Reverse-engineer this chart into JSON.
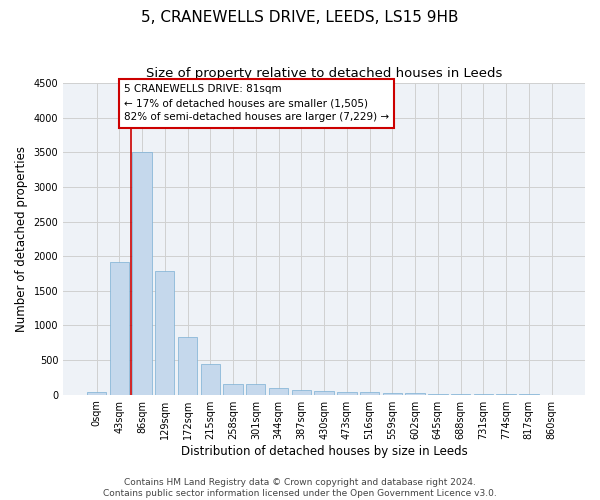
{
  "title": "5, CRANEWELLS DRIVE, LEEDS, LS15 9HB",
  "subtitle": "Size of property relative to detached houses in Leeds",
  "xlabel": "Distribution of detached houses by size in Leeds",
  "ylabel": "Number of detached properties",
  "bin_labels": [
    "0sqm",
    "43sqm",
    "86sqm",
    "129sqm",
    "172sqm",
    "215sqm",
    "258sqm",
    "301sqm",
    "344sqm",
    "387sqm",
    "430sqm",
    "473sqm",
    "516sqm",
    "559sqm",
    "602sqm",
    "645sqm",
    "688sqm",
    "731sqm",
    "774sqm",
    "817sqm",
    "860sqm"
  ],
  "bar_values": [
    40,
    1920,
    3500,
    1780,
    840,
    450,
    155,
    155,
    90,
    65,
    55,
    45,
    35,
    25,
    20,
    15,
    10,
    10,
    7,
    5,
    0
  ],
  "bar_color": "#c5d8ec",
  "bar_edge_color": "#7bafd4",
  "vline_x_bar_index": 2,
  "annotation_text": "5 CRANEWELLS DRIVE: 81sqm\n← 17% of detached houses are smaller (1,505)\n82% of semi-detached houses are larger (7,229) →",
  "annotation_box_color": "#ffffff",
  "annotation_box_edge": "#cc0000",
  "vline_color": "#cc0000",
  "ylim": [
    0,
    4500
  ],
  "yticks": [
    0,
    500,
    1000,
    1500,
    2000,
    2500,
    3000,
    3500,
    4000,
    4500
  ],
  "grid_color": "#d0d0d0",
  "bg_color": "#eef2f7",
  "footer_line1": "Contains HM Land Registry data © Crown copyright and database right 2024.",
  "footer_line2": "Contains public sector information licensed under the Open Government Licence v3.0.",
  "title_fontsize": 11,
  "subtitle_fontsize": 9.5,
  "axis_label_fontsize": 8.5,
  "tick_fontsize": 7,
  "annotation_fontsize": 7.5,
  "footer_fontsize": 6.5
}
